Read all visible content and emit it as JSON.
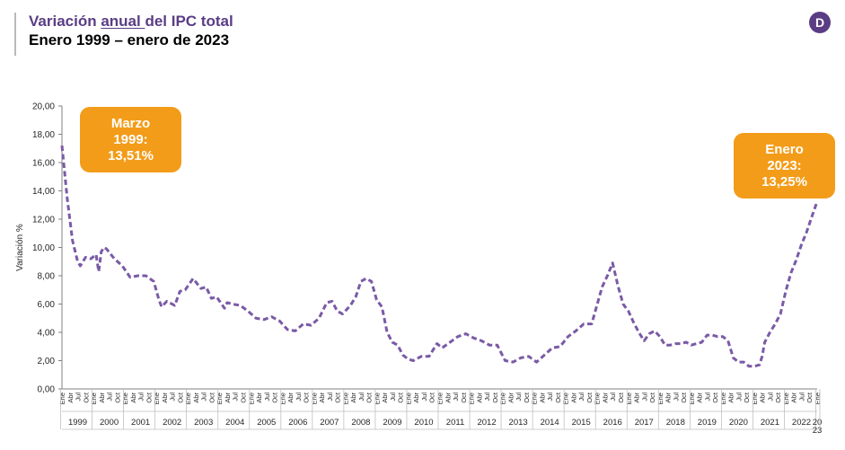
{
  "header": {
    "title_pre": "Variación ",
    "title_underlined": "anual ",
    "title_post": "del IPC total",
    "subtitle": "Enero 1999 – enero de 2023",
    "logo_letter": "D"
  },
  "colors": {
    "line": "#7a5aa6",
    "accent": "#f39c19",
    "title": "#5a3d84"
  },
  "chart_data": {
    "type": "line",
    "title": "Variación anual del IPC total",
    "subtitle": "Enero 1999 – enero de 2023",
    "ylabel": "Variación %",
    "ylim": [
      0,
      20
    ],
    "yticks": [
      "0,00",
      "2,00",
      "4,00",
      "6,00",
      "8,00",
      "10,00",
      "12,00",
      "14,00",
      "16,00",
      "18,00",
      "20,00"
    ],
    "month_tick_labels": [
      "Ene",
      "Abr",
      "Jul",
      "Oct"
    ],
    "years": [
      "1999",
      "2000",
      "2001",
      "2002",
      "2003",
      "2004",
      "2005",
      "2006",
      "2007",
      "2008",
      "2009",
      "2010",
      "2011",
      "2012",
      "2013",
      "2014",
      "2015",
      "2016",
      "2017",
      "2018",
      "2019",
      "2020",
      "2021",
      "2022",
      "20\n23"
    ],
    "grid": false,
    "line_style": "dashed",
    "series": [
      {
        "points": [
          [
            "1999-01",
            17.2
          ],
          [
            "1999-03",
            13.5
          ],
          [
            "1999-05",
            10.5
          ],
          [
            "1999-07",
            9.0
          ],
          [
            "1999-08",
            8.7
          ],
          [
            "1999-10",
            9.3
          ],
          [
            "1999-12",
            9.2
          ],
          [
            "2000-02",
            9.5
          ],
          [
            "2000-03",
            8.3
          ],
          [
            "2000-04",
            9.7
          ],
          [
            "2000-05",
            10.0
          ],
          [
            "2000-06",
            9.9
          ],
          [
            "2000-09",
            9.2
          ],
          [
            "2000-12",
            8.7
          ],
          [
            "2001-03",
            7.9
          ],
          [
            "2001-06",
            8.0
          ],
          [
            "2001-09",
            8.0
          ],
          [
            "2001-12",
            7.6
          ],
          [
            "2002-02",
            6.3
          ],
          [
            "2002-03",
            5.8
          ],
          [
            "2002-05",
            6.2
          ],
          [
            "2002-08",
            5.9
          ],
          [
            "2002-10",
            6.9
          ],
          [
            "2002-12",
            7.0
          ],
          [
            "2003-03",
            7.8
          ],
          [
            "2003-06",
            7.1
          ],
          [
            "2003-08",
            7.2
          ],
          [
            "2003-10",
            6.4
          ],
          [
            "2003-12",
            6.5
          ],
          [
            "2004-03",
            5.7
          ],
          [
            "2004-04",
            6.1
          ],
          [
            "2004-06",
            6.0
          ],
          [
            "2004-09",
            5.9
          ],
          [
            "2004-12",
            5.5
          ],
          [
            "2005-03",
            5.0
          ],
          [
            "2005-06",
            4.9
          ],
          [
            "2005-09",
            5.1
          ],
          [
            "2005-12",
            4.8
          ],
          [
            "2006-03",
            4.2
          ],
          [
            "2006-06",
            4.1
          ],
          [
            "2006-09",
            4.6
          ],
          [
            "2006-12",
            4.5
          ],
          [
            "2007-03",
            5.0
          ],
          [
            "2007-06",
            6.1
          ],
          [
            "2007-08",
            6.2
          ],
          [
            "2007-10",
            5.5
          ],
          [
            "2007-12",
            5.3
          ],
          [
            "2008-03",
            5.9
          ],
          [
            "2008-05",
            6.5
          ],
          [
            "2008-07",
            7.6
          ],
          [
            "2008-09",
            7.8
          ],
          [
            "2008-11",
            7.6
          ],
          [
            "2009-01",
            6.3
          ],
          [
            "2009-03",
            5.8
          ],
          [
            "2009-05",
            4.0
          ],
          [
            "2009-07",
            3.3
          ],
          [
            "2009-09",
            3.1
          ],
          [
            "2009-11",
            2.4
          ],
          [
            "2010-01",
            2.1
          ],
          [
            "2010-03",
            2.0
          ],
          [
            "2010-06",
            2.3
          ],
          [
            "2010-09",
            2.3
          ],
          [
            "2010-12",
            3.2
          ],
          [
            "2011-02",
            2.9
          ],
          [
            "2011-05",
            3.3
          ],
          [
            "2011-08",
            3.7
          ],
          [
            "2011-11",
            3.9
          ],
          [
            "2012-02",
            3.6
          ],
          [
            "2012-05",
            3.4
          ],
          [
            "2012-08",
            3.1
          ],
          [
            "2012-11",
            3.1
          ],
          [
            "2013-02",
            2.0
          ],
          [
            "2013-05",
            1.9
          ],
          [
            "2013-08",
            2.2
          ],
          [
            "2013-11",
            2.3
          ],
          [
            "2014-02",
            1.9
          ],
          [
            "2014-05",
            2.4
          ],
          [
            "2014-08",
            2.9
          ],
          [
            "2014-11",
            3.0
          ],
          [
            "2015-02",
            3.7
          ],
          [
            "2015-05",
            4.1
          ],
          [
            "2015-08",
            4.6
          ],
          [
            "2015-11",
            4.6
          ],
          [
            "2016-01",
            5.9
          ],
          [
            "2016-03",
            7.2
          ],
          [
            "2016-05",
            8.0
          ],
          [
            "2016-07",
            8.9
          ],
          [
            "2016-09",
            7.3
          ],
          [
            "2016-11",
            6.0
          ],
          [
            "2017-01",
            5.5
          ],
          [
            "2017-03",
            4.7
          ],
          [
            "2017-05",
            4.0
          ],
          [
            "2017-07",
            3.4
          ],
          [
            "2017-09",
            3.9
          ],
          [
            "2017-11",
            4.1
          ],
          [
            "2018-01",
            3.7
          ],
          [
            "2018-03",
            3.1
          ],
          [
            "2018-05",
            3.1
          ],
          [
            "2018-07",
            3.2
          ],
          [
            "2018-09",
            3.2
          ],
          [
            "2018-11",
            3.3
          ],
          [
            "2019-01",
            3.1
          ],
          [
            "2019-03",
            3.2
          ],
          [
            "2019-05",
            3.3
          ],
          [
            "2019-07",
            3.8
          ],
          [
            "2019-09",
            3.8
          ],
          [
            "2019-11",
            3.7
          ],
          [
            "2020-01",
            3.7
          ],
          [
            "2020-03",
            3.4
          ],
          [
            "2020-05",
            2.2
          ],
          [
            "2020-07",
            1.9
          ],
          [
            "2020-09",
            1.9
          ],
          [
            "2020-11",
            1.6
          ],
          [
            "2021-01",
            1.6
          ],
          [
            "2021-03",
            1.7
          ],
          [
            "2021-04",
            2.3
          ],
          [
            "2021-05",
            3.3
          ],
          [
            "2021-07",
            4.0
          ],
          [
            "2021-09",
            4.6
          ],
          [
            "2021-11",
            5.3
          ],
          [
            "2022-01",
            6.9
          ],
          [
            "2022-03",
            8.2
          ],
          [
            "2022-05",
            9.1
          ],
          [
            "2022-07",
            10.2
          ],
          [
            "2022-09",
            11.1
          ],
          [
            "2022-11",
            12.2
          ],
          [
            "2023-01",
            13.25
          ]
        ]
      }
    ],
    "annotations": [
      {
        "lines": [
          "Marzo",
          "1999:",
          "13,51%"
        ]
      },
      {
        "lines": [
          "Enero",
          "2023:",
          "13,25%"
        ]
      }
    ]
  }
}
